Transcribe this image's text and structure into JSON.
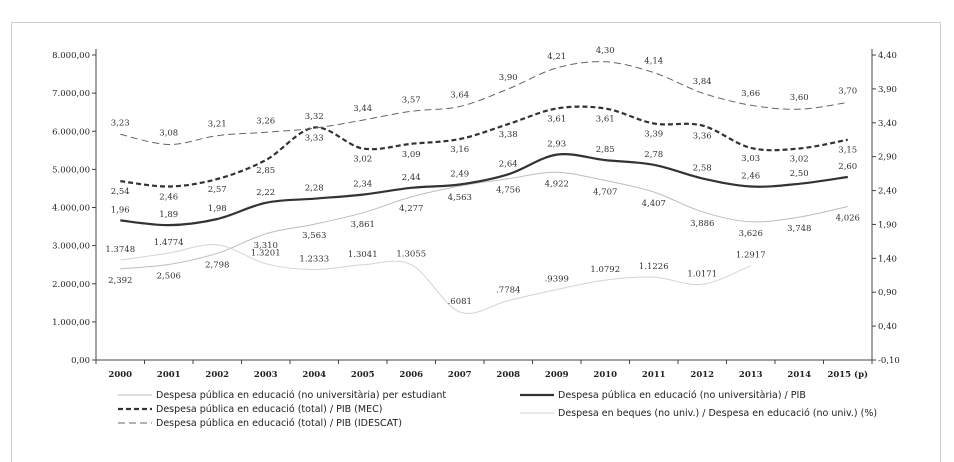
{
  "chart_data": {
    "type": "line",
    "x": [
      "2000",
      "2001",
      "2002",
      "2003",
      "2004",
      "2005",
      "2006",
      "2007",
      "2008",
      "2009",
      "2010",
      "2011",
      "2012",
      "2013",
      "2014",
      "2015 (p)"
    ],
    "left_axis": {
      "ylim": [
        0,
        8000
      ],
      "ticks": [
        "0,00",
        "1.000,00",
        "2.000,00",
        "3.000,00",
        "4.000,00",
        "5.000,00",
        "6.000,00",
        "7.000,00",
        "8.000,00"
      ]
    },
    "right_axis": {
      "ylim": [
        -0.1,
        4.4
      ],
      "ticks": [
        "-0,10",
        "0,40",
        "0,90",
        "1,40",
        "1,90",
        "2,40",
        "2,90",
        "3,40",
        "3,90",
        "4,40"
      ]
    },
    "series": [
      {
        "name": "Despesa pública en educació (no universitària) per estudiant",
        "axis": "left",
        "style": "thin-light",
        "color": "#bdbdbd",
        "values": [
          2392,
          2506,
          2798,
          3310,
          3563,
          3861,
          4277,
          4563,
          4756,
          4922,
          4707,
          4407,
          3886,
          3626,
          3748,
          4026
        ],
        "labels": [
          "2,392",
          "2,506",
          "2,798",
          "3,310",
          "3,563",
          "3,861",
          "4,277",
          "4,563",
          "4,756",
          "4,922",
          "4,707",
          "4,407",
          "3,886",
          "3,626",
          "3,748",
          "4,026"
        ]
      },
      {
        "name": "Despesa pública en educació (no universitària) / PIB",
        "axis": "right",
        "style": "solid-bold",
        "color": "#333333",
        "values": [
          1.96,
          1.89,
          1.98,
          2.22,
          2.28,
          2.34,
          2.44,
          2.49,
          2.64,
          2.93,
          2.85,
          2.78,
          2.58,
          2.46,
          2.5,
          2.6
        ],
        "labels": [
          "1,96",
          "1,89",
          "1,98",
          "2,22",
          "2,28",
          "2,34",
          "2,44",
          "2,49",
          "2,64",
          "2,93",
          "2,85",
          "2,78",
          "2,58",
          "2,46",
          "2,50",
          "2,60"
        ]
      },
      {
        "name": "Despesa pública en educació (total) / PIB (MEC)",
        "axis": "right",
        "style": "dashed-bold",
        "color": "#333333",
        "values": [
          2.54,
          2.46,
          2.57,
          2.85,
          3.33,
          3.02,
          3.09,
          3.16,
          3.38,
          3.61,
          3.61,
          3.39,
          3.36,
          3.03,
          3.02,
          3.15
        ],
        "labels": [
          "2,54",
          "2,46",
          "2,57",
          "2,85",
          "3,33",
          "3,02",
          "3,09",
          "3,16",
          "3,38",
          "3,61",
          "3,61",
          "3,39",
          "3,36",
          "3,03",
          "3,02",
          "3,15"
        ]
      },
      {
        "name": "Despesa pública en educació (total) / PIB (IDESCAT)",
        "axis": "right",
        "style": "dashed-thin",
        "color": "#666666",
        "values": [
          3.23,
          3.08,
          3.21,
          3.26,
          3.32,
          3.44,
          3.57,
          3.64,
          3.9,
          4.21,
          4.3,
          4.14,
          3.84,
          3.66,
          3.6,
          3.7
        ],
        "labels": [
          "3,23",
          "3,08",
          "3,21",
          "3,26",
          "3,32",
          "3,44",
          "3,57",
          "3,64",
          "3,90",
          "4,21",
          "4,30",
          "4,14",
          "3,84",
          "3,66",
          "3,60",
          "3,70"
        ]
      },
      {
        "name": "Despesa en beques (no univ.) / Despesa en educació (no univ.) (%)",
        "axis": "right",
        "style": "thin-lightest",
        "color": "#d4d4d4",
        "values": [
          1.3748,
          1.4774,
          1.6,
          1.3201,
          1.2333,
          1.3041,
          1.3055,
          0.6081,
          0.7784,
          0.9399,
          1.0792,
          1.1226,
          1.0171,
          1.2917,
          null,
          null
        ],
        "labels": [
          "1.3748",
          "1.4774",
          null,
          "1.3201",
          "1.2333",
          "1.3041",
          "1.3055",
          ".6081",
          ".7784",
          ".9399",
          "1.0792",
          "1.1226",
          "1.0171",
          "1.2917",
          null,
          null
        ]
      }
    ],
    "legend_position": "bottom",
    "grid": false
  }
}
